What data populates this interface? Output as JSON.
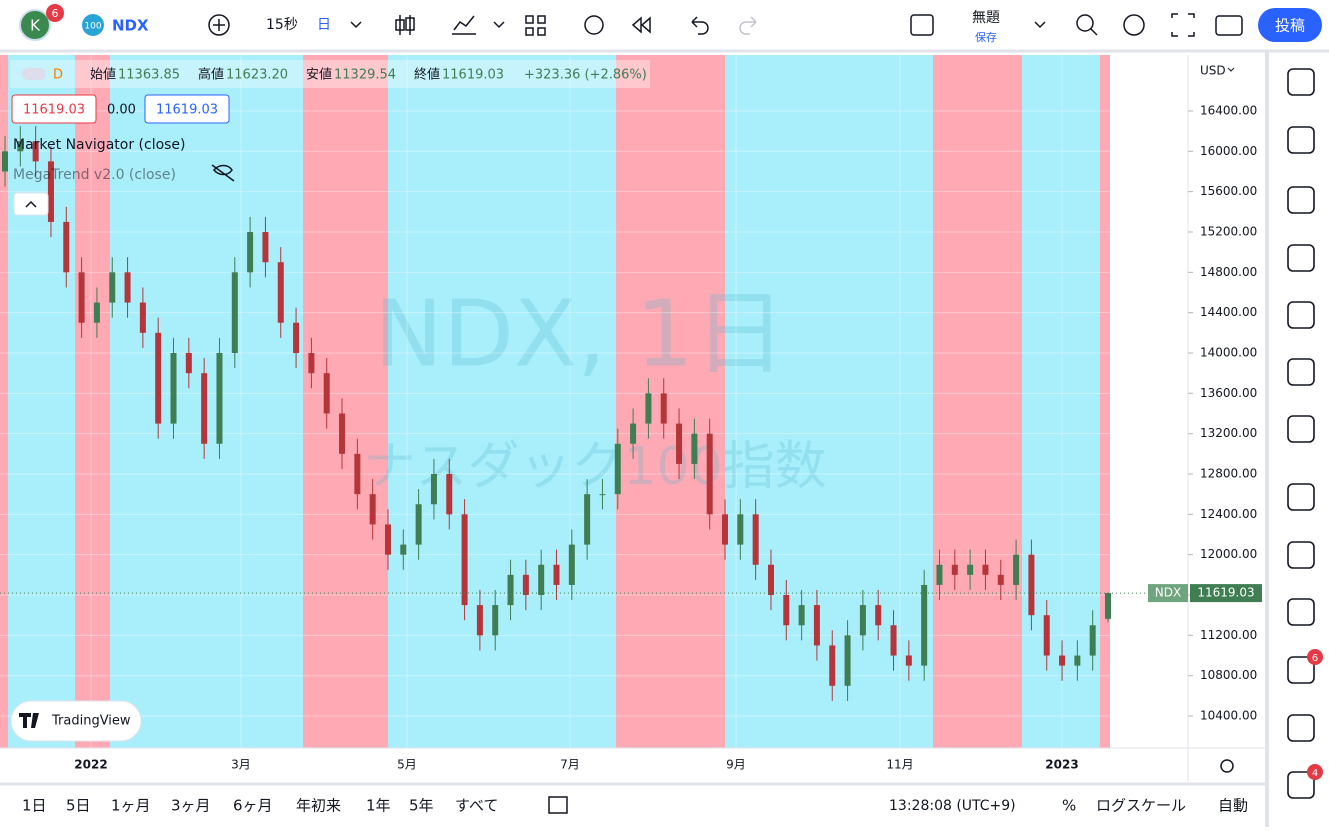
{
  "toolbar": {
    "avatar": "K",
    "avatar_badge": "6",
    "symbol_icon": "100",
    "symbol": "NDX",
    "interval": "15秒",
    "timeframe": "日",
    "layout_name": "無題",
    "save": "保存",
    "publish": "投稿"
  },
  "legend": {
    "interval": "D",
    "open_label": "始値",
    "high_label": "高値",
    "low_label": "安値",
    "close_label": "終値",
    "change": "+323.36 (+2.86%)",
    "box_change": "0.00",
    "indicators": [
      "Market Navigator (close)",
      "MegaTrend v2.0 (close)"
    ]
  },
  "chart_data": {
    "type": "candlestick",
    "watermark": "NDX, 1日",
    "watermark_sub": "ナスダック100指数",
    "currency": "USD",
    "symbol_label": "NDX",
    "open": [
      15800,
      16000,
      16100,
      15900,
      15300,
      14800,
      14300,
      14500,
      14800,
      14500,
      14200,
      13300,
      14000,
      13800,
      13100,
      14000,
      14800,
      15200,
      14900,
      14300,
      14000,
      13800,
      13400,
      13000,
      12600,
      12300,
      12000,
      12100,
      12500,
      12800,
      12400,
      11500,
      11200,
      11500,
      11800,
      11600,
      11900,
      11700,
      12100,
      12600,
      12600,
      13100,
      13300,
      13600,
      13300,
      12900,
      13200,
      12400,
      12100,
      12400,
      11900,
      11600,
      11300,
      11500,
      11100,
      10700,
      11200,
      11500,
      11300,
      11000,
      10900,
      11700,
      11900,
      11800,
      11900,
      11800,
      11700,
      12000,
      11400,
      11000,
      10900,
      11000,
      11363.85
    ],
    "high": [
      16150,
      16250,
      16250,
      16050,
      15450,
      14950,
      14650,
      14950,
      14950,
      14650,
      14350,
      14150,
      14150,
      13950,
      14150,
      14950,
      15350,
      15350,
      15050,
      14450,
      14150,
      13950,
      13550,
      13150,
      12750,
      12450,
      12250,
      12650,
      12950,
      12950,
      12550,
      11650,
      11650,
      11950,
      11950,
      12050,
      12050,
      12250,
      12750,
      12750,
      13250,
      13450,
      13750,
      13750,
      13450,
      13350,
      13350,
      12550,
      12550,
      12550,
      12050,
      11750,
      11650,
      11650,
      11250,
      11350,
      11650,
      11650,
      11450,
      11150,
      11850,
      12050,
      12050,
      12050,
      12050,
      11950,
      12150,
      12150,
      11550,
      11150,
      11150,
      11450,
      11623.2
    ],
    "low": [
      15650,
      15850,
      15750,
      15150,
      14650,
      14150,
      14150,
      14350,
      14350,
      14050,
      13150,
      13150,
      13650,
      12950,
      12950,
      13850,
      14650,
      14750,
      14150,
      13850,
      13650,
      13250,
      12850,
      12450,
      12150,
      11850,
      11850,
      11950,
      12350,
      12250,
      11350,
      11050,
      11050,
      11350,
      11450,
      11450,
      11550,
      11550,
      11950,
      12450,
      12450,
      12950,
      13150,
      13150,
      12750,
      12750,
      12250,
      11950,
      11950,
      11750,
      11450,
      11150,
      11150,
      10950,
      10550,
      10550,
      11050,
      11150,
      10850,
      10750,
      10750,
      11550,
      11650,
      11650,
      11650,
      11550,
      11550,
      11250,
      10850,
      10750,
      10750,
      10850,
      11329.54
    ],
    "close": [
      16000,
      16100,
      15900,
      15300,
      14800,
      14300,
      14500,
      14800,
      14500,
      14200,
      13300,
      14000,
      13800,
      13100,
      14000,
      14800,
      15200,
      14900,
      14300,
      14000,
      13800,
      13400,
      13000,
      12600,
      12300,
      12000,
      12100,
      12500,
      12800,
      12400,
      11500,
      11200,
      11500,
      11800,
      11600,
      11900,
      11700,
      12100,
      12600,
      12600,
      13100,
      13300,
      13600,
      13300,
      12900,
      13200,
      12400,
      12100,
      12400,
      11900,
      11600,
      11300,
      11500,
      11100,
      10700,
      11200,
      11500,
      11300,
      11000,
      10900,
      11700,
      11900,
      11800,
      11900,
      11800,
      11700,
      12000,
      11400,
      11000,
      10900,
      11000,
      11300,
      11619.03
    ],
    "last_labels": {
      "open": "11363.85",
      "high": "11623.20",
      "low": "11329.54",
      "close": "11619.03"
    },
    "up_color": "#3f7d52",
    "down_color": "#b5353a",
    "ylim": [
      10083,
      16955
    ],
    "yticks": [
      {
        "value": 10400,
        "label": "10400.00"
      },
      {
        "value": 10800,
        "label": "10800.00"
      },
      {
        "value": 11200,
        "label": "11200.00"
      },
      {
        "value": 11600,
        "label": "11600.00"
      },
      {
        "value": 12000,
        "label": "12000.00"
      },
      {
        "value": 12400,
        "label": "12400.00"
      },
      {
        "value": 12800,
        "label": "12800.00"
      },
      {
        "value": 13200,
        "label": "13200.00"
      },
      {
        "value": 13600,
        "label": "13600.00"
      },
      {
        "value": 14000,
        "label": "14000.00"
      },
      {
        "value": 14400,
        "label": "14400.00"
      },
      {
        "value": 14800,
        "label": "14800.00"
      },
      {
        "value": 15200,
        "label": "15200.00"
      },
      {
        "value": 15600,
        "label": "15600.00"
      },
      {
        "value": 16000,
        "label": "16000.00"
      },
      {
        "value": 16400,
        "label": "16400.00"
      }
    ],
    "x_labels": [
      "2022",
      "3月",
      "5月",
      "7月",
      "9月",
      "11月",
      "2023"
    ]
  },
  "bottom_bar": {
    "ranges": [
      "1日",
      "5日",
      "1ヶ月",
      "3ヶ月",
      "6ヶ月",
      "年初来",
      "1年",
      "5年",
      "すべて"
    ],
    "clock": "13:28:08 (UTC+9)",
    "percent": "%",
    "log": "ログスケール",
    "auto": "自動"
  },
  "sidebar": {
    "badge_alerts": "6",
    "badge_notifications": "4"
  },
  "logo": "TradingView"
}
